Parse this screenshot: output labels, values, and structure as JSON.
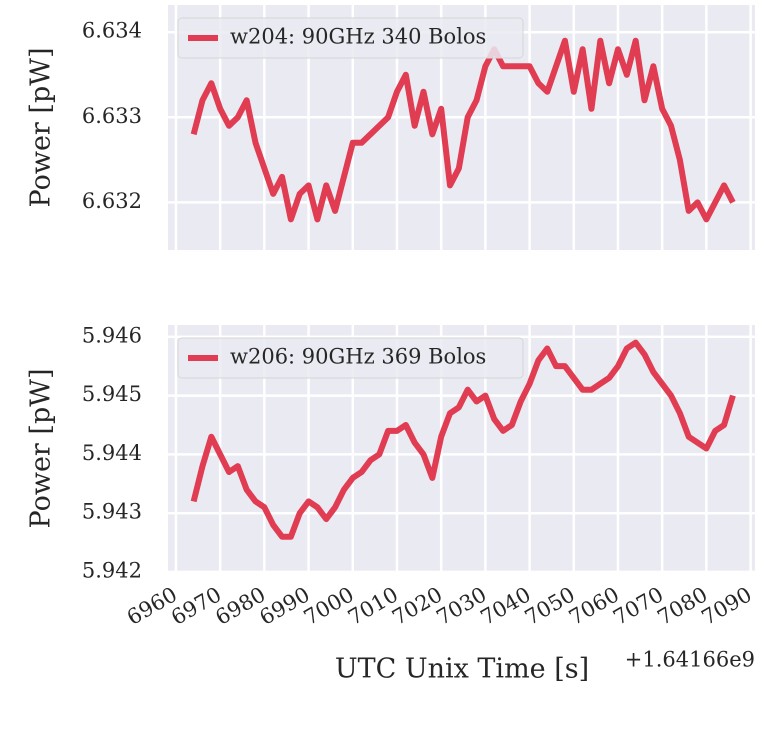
{
  "chart_data": [
    {
      "type": "line",
      "ylabel": "Power [pW]",
      "x": [
        6964,
        6966,
        6968,
        6970,
        6972,
        6974,
        6976,
        6978,
        6980,
        6982,
        6984,
        6986,
        6988,
        6990,
        6992,
        6994,
        6996,
        6998,
        7000,
        7002,
        7004,
        7006,
        7008,
        7010,
        7012,
        7014,
        7016,
        7018,
        7020,
        7022,
        7024,
        7026,
        7028,
        7030,
        7032,
        7034,
        7036,
        7038,
        7040,
        7042,
        7044,
        7046,
        7048,
        7050,
        7052,
        7054,
        7056,
        7058,
        7060,
        7062,
        7064,
        7066,
        7068,
        7070,
        7072,
        7074,
        7076,
        7078,
        7080,
        7082,
        7084,
        7086
      ],
      "series": [
        {
          "name": "w204: 90GHz 340 Bolos",
          "color": "#e03c52",
          "values": [
            6.6328,
            6.6332,
            6.6334,
            6.6331,
            6.6329,
            6.633,
            6.6332,
            6.6327,
            6.6324,
            6.6321,
            6.6323,
            6.6318,
            6.6321,
            6.6322,
            6.6318,
            6.6322,
            6.6319,
            6.6323,
            6.6327,
            6.6327,
            6.6328,
            6.6329,
            6.633,
            6.6333,
            6.6335,
            6.6329,
            6.6333,
            6.6328,
            6.6331,
            6.6322,
            6.6324,
            6.633,
            6.6332,
            6.6336,
            6.6338,
            6.6336,
            6.6336,
            6.6336,
            6.6336,
            6.6334,
            6.6333,
            6.6336,
            6.6339,
            6.6333,
            6.6338,
            6.6331,
            6.6339,
            6.6334,
            6.6338,
            6.6335,
            6.6339,
            6.6332,
            6.6336,
            6.6331,
            6.6329,
            6.6325,
            6.6319,
            6.632,
            6.6318,
            6.632,
            6.6322,
            6.632
          ]
        }
      ],
      "xlim": [
        6958.2,
        7091
      ],
      "xticks": [
        6960,
        6970,
        6980,
        6990,
        7000,
        7010,
        7020,
        7030,
        7040,
        7050,
        7060,
        7070,
        7080,
        7090
      ],
      "ylim": [
        6.63144,
        6.63432
      ],
      "yticks": [
        6.632,
        6.633,
        6.634
      ],
      "grid": true,
      "legend": "upper left"
    },
    {
      "type": "line",
      "ylabel": "Power [pW]",
      "xlabel": "UTC Unix Time [s]",
      "x_offset": "+1.64166e9",
      "x": [
        6964,
        6966,
        6968,
        6970,
        6972,
        6974,
        6976,
        6978,
        6980,
        6982,
        6984,
        6986,
        6988,
        6990,
        6992,
        6994,
        6996,
        6998,
        7000,
        7002,
        7004,
        7006,
        7008,
        7010,
        7012,
        7014,
        7016,
        7018,
        7020,
        7022,
        7024,
        7026,
        7028,
        7030,
        7032,
        7034,
        7036,
        7038,
        7040,
        7042,
        7044,
        7046,
        7048,
        7050,
        7052,
        7054,
        7056,
        7058,
        7060,
        7062,
        7064,
        7066,
        7068,
        7070,
        7072,
        7074,
        7076,
        7078,
        7080,
        7082,
        7084,
        7086
      ],
      "series": [
        {
          "name": "w206: 90GHz 369 Bolos",
          "color": "#e03c52",
          "values": [
            5.9432,
            5.9438,
            5.9443,
            5.944,
            5.9437,
            5.9438,
            5.9434,
            5.9432,
            5.9431,
            5.9428,
            5.9426,
            5.9426,
            5.943,
            5.9432,
            5.9431,
            5.9429,
            5.9431,
            5.9434,
            5.9436,
            5.9437,
            5.9439,
            5.944,
            5.9444,
            5.9444,
            5.9445,
            5.9442,
            5.944,
            5.9436,
            5.9443,
            5.9447,
            5.9448,
            5.9451,
            5.9449,
            5.945,
            5.9446,
            5.9444,
            5.9445,
            5.9449,
            5.9452,
            5.9456,
            5.9458,
            5.9455,
            5.9455,
            5.9453,
            5.9451,
            5.9451,
            5.9452,
            5.9453,
            5.9455,
            5.9458,
            5.9459,
            5.9457,
            5.9454,
            5.9452,
            5.945,
            5.9447,
            5.9443,
            5.9442,
            5.9441,
            5.9444,
            5.9445,
            5.945
          ]
        }
      ],
      "xlim": [
        6958.2,
        7091
      ],
      "xticks": [
        6960,
        6970,
        6980,
        6990,
        7000,
        7010,
        7020,
        7030,
        7040,
        7050,
        7060,
        7070,
        7080,
        7090
      ],
      "ylim": [
        5.942,
        5.9462
      ],
      "yticks": [
        5.942,
        5.943,
        5.944,
        5.945,
        5.946
      ],
      "grid": true,
      "legend": "upper left"
    }
  ]
}
